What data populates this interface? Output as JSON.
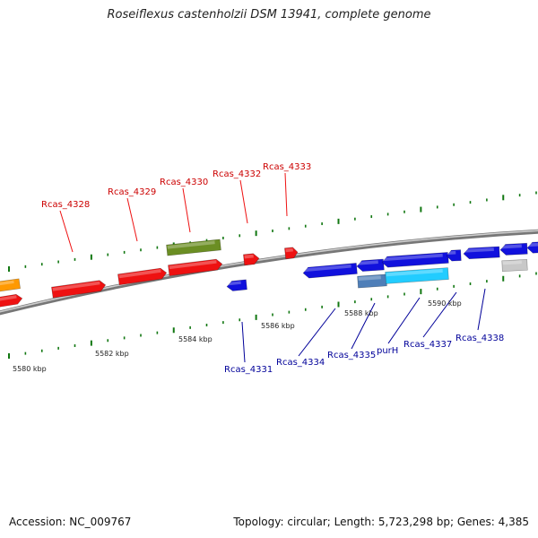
{
  "title": "Roseiflexus castenholzii DSM 13941, complete genome",
  "footer": {
    "accession": "Accession: NC_009767",
    "topology": "Topology: circular; Length: 5,723,298 bp; Genes: 4,385"
  },
  "colors": {
    "forward_gene": "#ee1111",
    "reverse_gene": "#1111dd",
    "forward_label": "#cc0000",
    "reverse_label": "#000099",
    "olive_gene": "#6b8e23",
    "orange_gene": "#ff9900",
    "steel_gene": "#4f7fb8",
    "cyan_gene": "#22ccff",
    "gray_gene": "#c8c8c8",
    "tick": "#117711",
    "backbone": "#888888"
  },
  "scale_labels": [
    "5580 kbp",
    "5582 kbp",
    "5584 kbp",
    "5586 kbp",
    "5588 kbp",
    "5590 kbp"
  ],
  "top_gene_labels": [
    "Rcas_4328",
    "Rcas_4329",
    "Rcas_4330",
    "Rcas_4332",
    "Rcas_4333"
  ],
  "bottom_gene_labels": [
    "Rcas_4331",
    "Rcas_4334",
    "Rcas_4335",
    "purH",
    "Rcas_4337",
    "Rcas_4338"
  ]
}
